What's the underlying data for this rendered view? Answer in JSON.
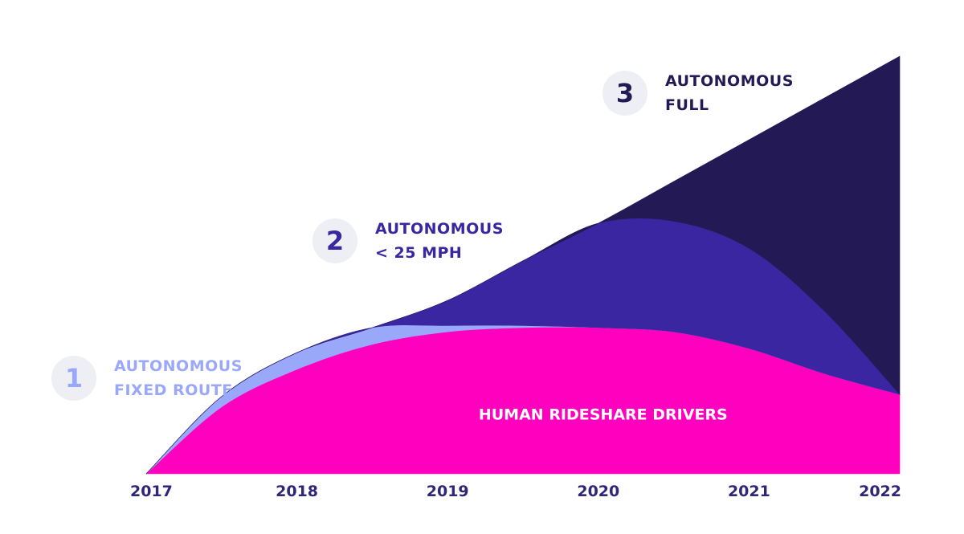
{
  "chart_data": {
    "type": "area",
    "title": "",
    "xlabel": "",
    "ylabel": "",
    "x": [
      "2017",
      "2018",
      "2019",
      "2020",
      "2021",
      "2022"
    ],
    "xlim": [
      2017,
      2022
    ],
    "ylim": [
      0,
      100
    ],
    "grid": false,
    "legend": "none",
    "series": [
      {
        "name": "HUMAN RIDESHARE DRIVERS",
        "x": [
          2017,
          2017.5,
          2018,
          2018.5,
          2019,
          2019.5,
          2020,
          2020.5,
          2021,
          2021.5,
          2022
        ],
        "values": [
          0,
          16,
          25,
          31,
          34,
          35,
          35,
          34,
          30,
          24,
          19
        ],
        "color": "#ff00bf"
      },
      {
        "name": "1 AUTONOMOUS FIXED ROUTE",
        "x": [
          2017,
          2017.5,
          2018,
          2018.5,
          2019,
          2019.5,
          2020,
          2020.5,
          2021,
          2021.5,
          2022
        ],
        "values": [
          0,
          2.5,
          4,
          4,
          1.5,
          0.5,
          0,
          0,
          0,
          0,
          0
        ],
        "color": "#9aa8f9"
      },
      {
        "name": "2 AUTONOMOUS < 25 MPH",
        "x": [
          2017,
          2017.5,
          2018,
          2018.5,
          2019,
          2019.5,
          2020,
          2020.5,
          2021,
          2021.5,
          2022
        ],
        "values": [
          0,
          0,
          0,
          0,
          6,
          15.5,
          25,
          26.5,
          24,
          15,
          0
        ],
        "color": "#3a26a1"
      },
      {
        "name": "3 AUTONOMOUS FULL",
        "x": [
          2017,
          2017.5,
          2018,
          2018.5,
          2019,
          2019.5,
          2020,
          2020.5,
          2021,
          2021.5,
          2022
        ],
        "values": [
          0,
          0,
          0,
          0,
          0,
          0,
          0,
          9.5,
          26,
          51,
          81
        ],
        "color": "#231a55"
      }
    ],
    "annotations": [
      {
        "text": "HUMAN RIDESHARE DRIVERS",
        "x": 2020,
        "y": 13
      }
    ]
  },
  "stages": [
    {
      "number": "1",
      "line1": "AUTONOMOUS",
      "line2": "FIXED ROUTE",
      "color": "#9aa8f9"
    },
    {
      "number": "2",
      "line1": "AUTONOMOUS",
      "line2": "< 25 MPH",
      "color": "#3a26a1"
    },
    {
      "number": "3",
      "line1": "AUTONOMOUS",
      "line2": "FULL",
      "color": "#231a55"
    }
  ]
}
